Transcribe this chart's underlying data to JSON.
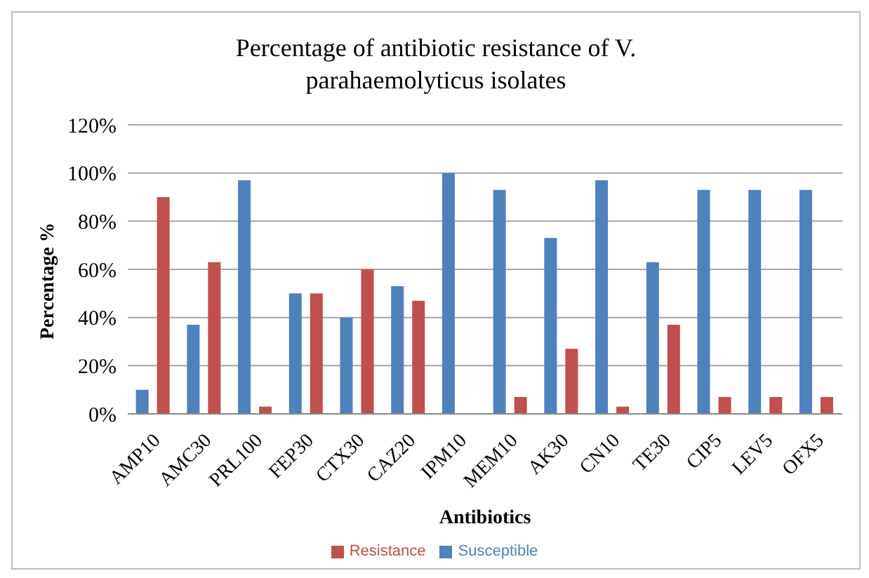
{
  "chart_data": {
    "type": "bar",
    "title": "Percentage  of antibiotic resistance of V. parahaemolyticus isolates",
    "xlabel": "Antibiotics",
    "ylabel": "Percentage %",
    "categories": [
      "AMP10",
      "AMC30",
      "PRL100",
      "FEP30",
      "CTX30",
      "CAZ20",
      "IPM10",
      "MEM10",
      "AK30",
      "CN10",
      "TE30",
      "CIP5",
      "LEV5",
      "OFX5"
    ],
    "series": [
      {
        "name": "Susceptible",
        "color": "#4f81bd",
        "values": [
          10,
          37,
          97,
          50,
          40,
          53,
          100,
          93,
          73,
          97,
          63,
          93,
          93,
          93
        ]
      },
      {
        "name": "Resistance",
        "color": "#c0504d",
        "values": [
          90,
          63,
          3,
          50,
          60,
          47,
          0,
          7,
          27,
          3,
          37,
          7,
          7,
          7
        ]
      }
    ],
    "ylim": [
      0,
      120
    ],
    "yticks": [
      {
        "value": 0,
        "label": "0%"
      },
      {
        "value": 20,
        "label": "20%"
      },
      {
        "value": 40,
        "label": "40%"
      },
      {
        "value": 60,
        "label": "60%"
      },
      {
        "value": 80,
        "label": "80%"
      },
      {
        "value": 100,
        "label": "100%"
      },
      {
        "value": 120,
        "label": "120%"
      }
    ],
    "grid": "y",
    "legend": "bottom"
  }
}
